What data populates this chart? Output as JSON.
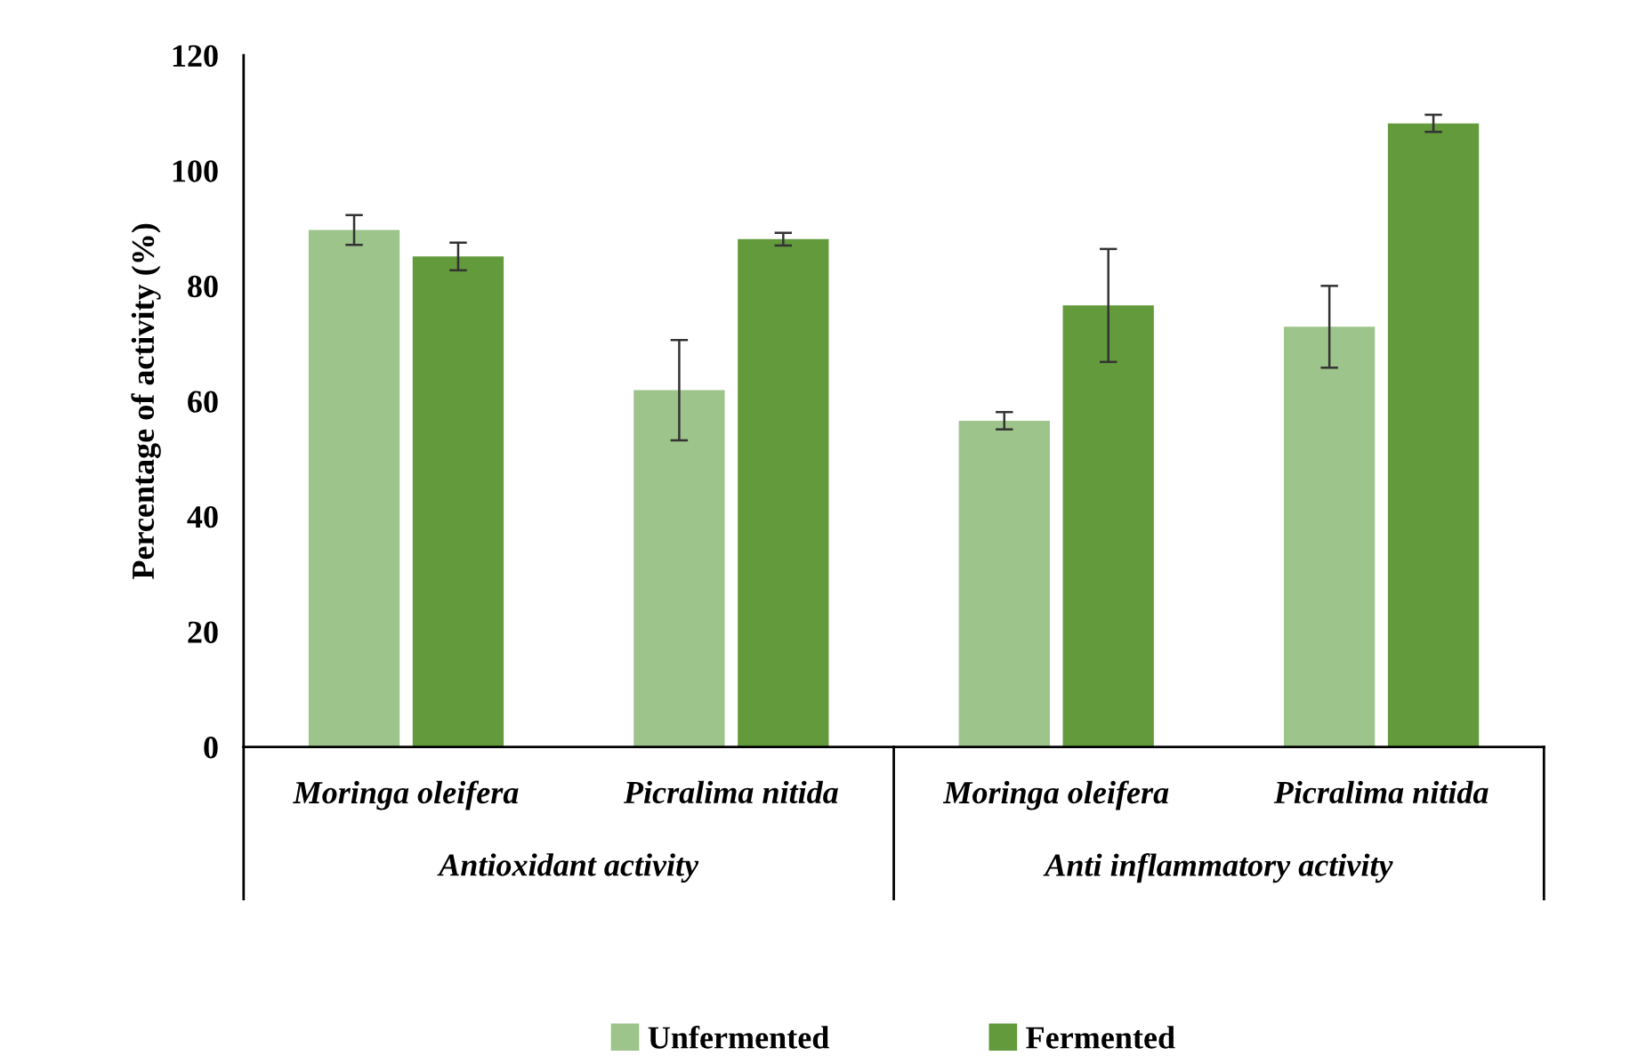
{
  "chart_data": {
    "type": "bar",
    "ylabel": "Percentage of activity (%)",
    "categories": [
      "Moringa oleifera",
      "Picralima nitida",
      "Moringa oleifera",
      "Picralima nitida"
    ],
    "annotations": [
      "Antioxidant activity",
      "Anti inflammatory activity"
    ],
    "series": [
      {
        "name": "Unfermented",
        "color": "#9dc48a",
        "values": [
          89.7,
          61.9,
          56.6,
          72.9
        ],
        "errors": [
          2.6,
          8.7,
          1.5,
          7.1
        ]
      },
      {
        "name": "Fermented",
        "color": "#629a3c",
        "values": [
          85.1,
          88.1,
          76.6,
          108.2
        ],
        "errors": [
          2.4,
          1.1,
          9.8,
          1.5
        ]
      }
    ],
    "ylim": [
      0,
      120
    ],
    "yticks": [
      0,
      20,
      40,
      60,
      80,
      100,
      120
    ],
    "grid": false,
    "legend": "bottom"
  }
}
